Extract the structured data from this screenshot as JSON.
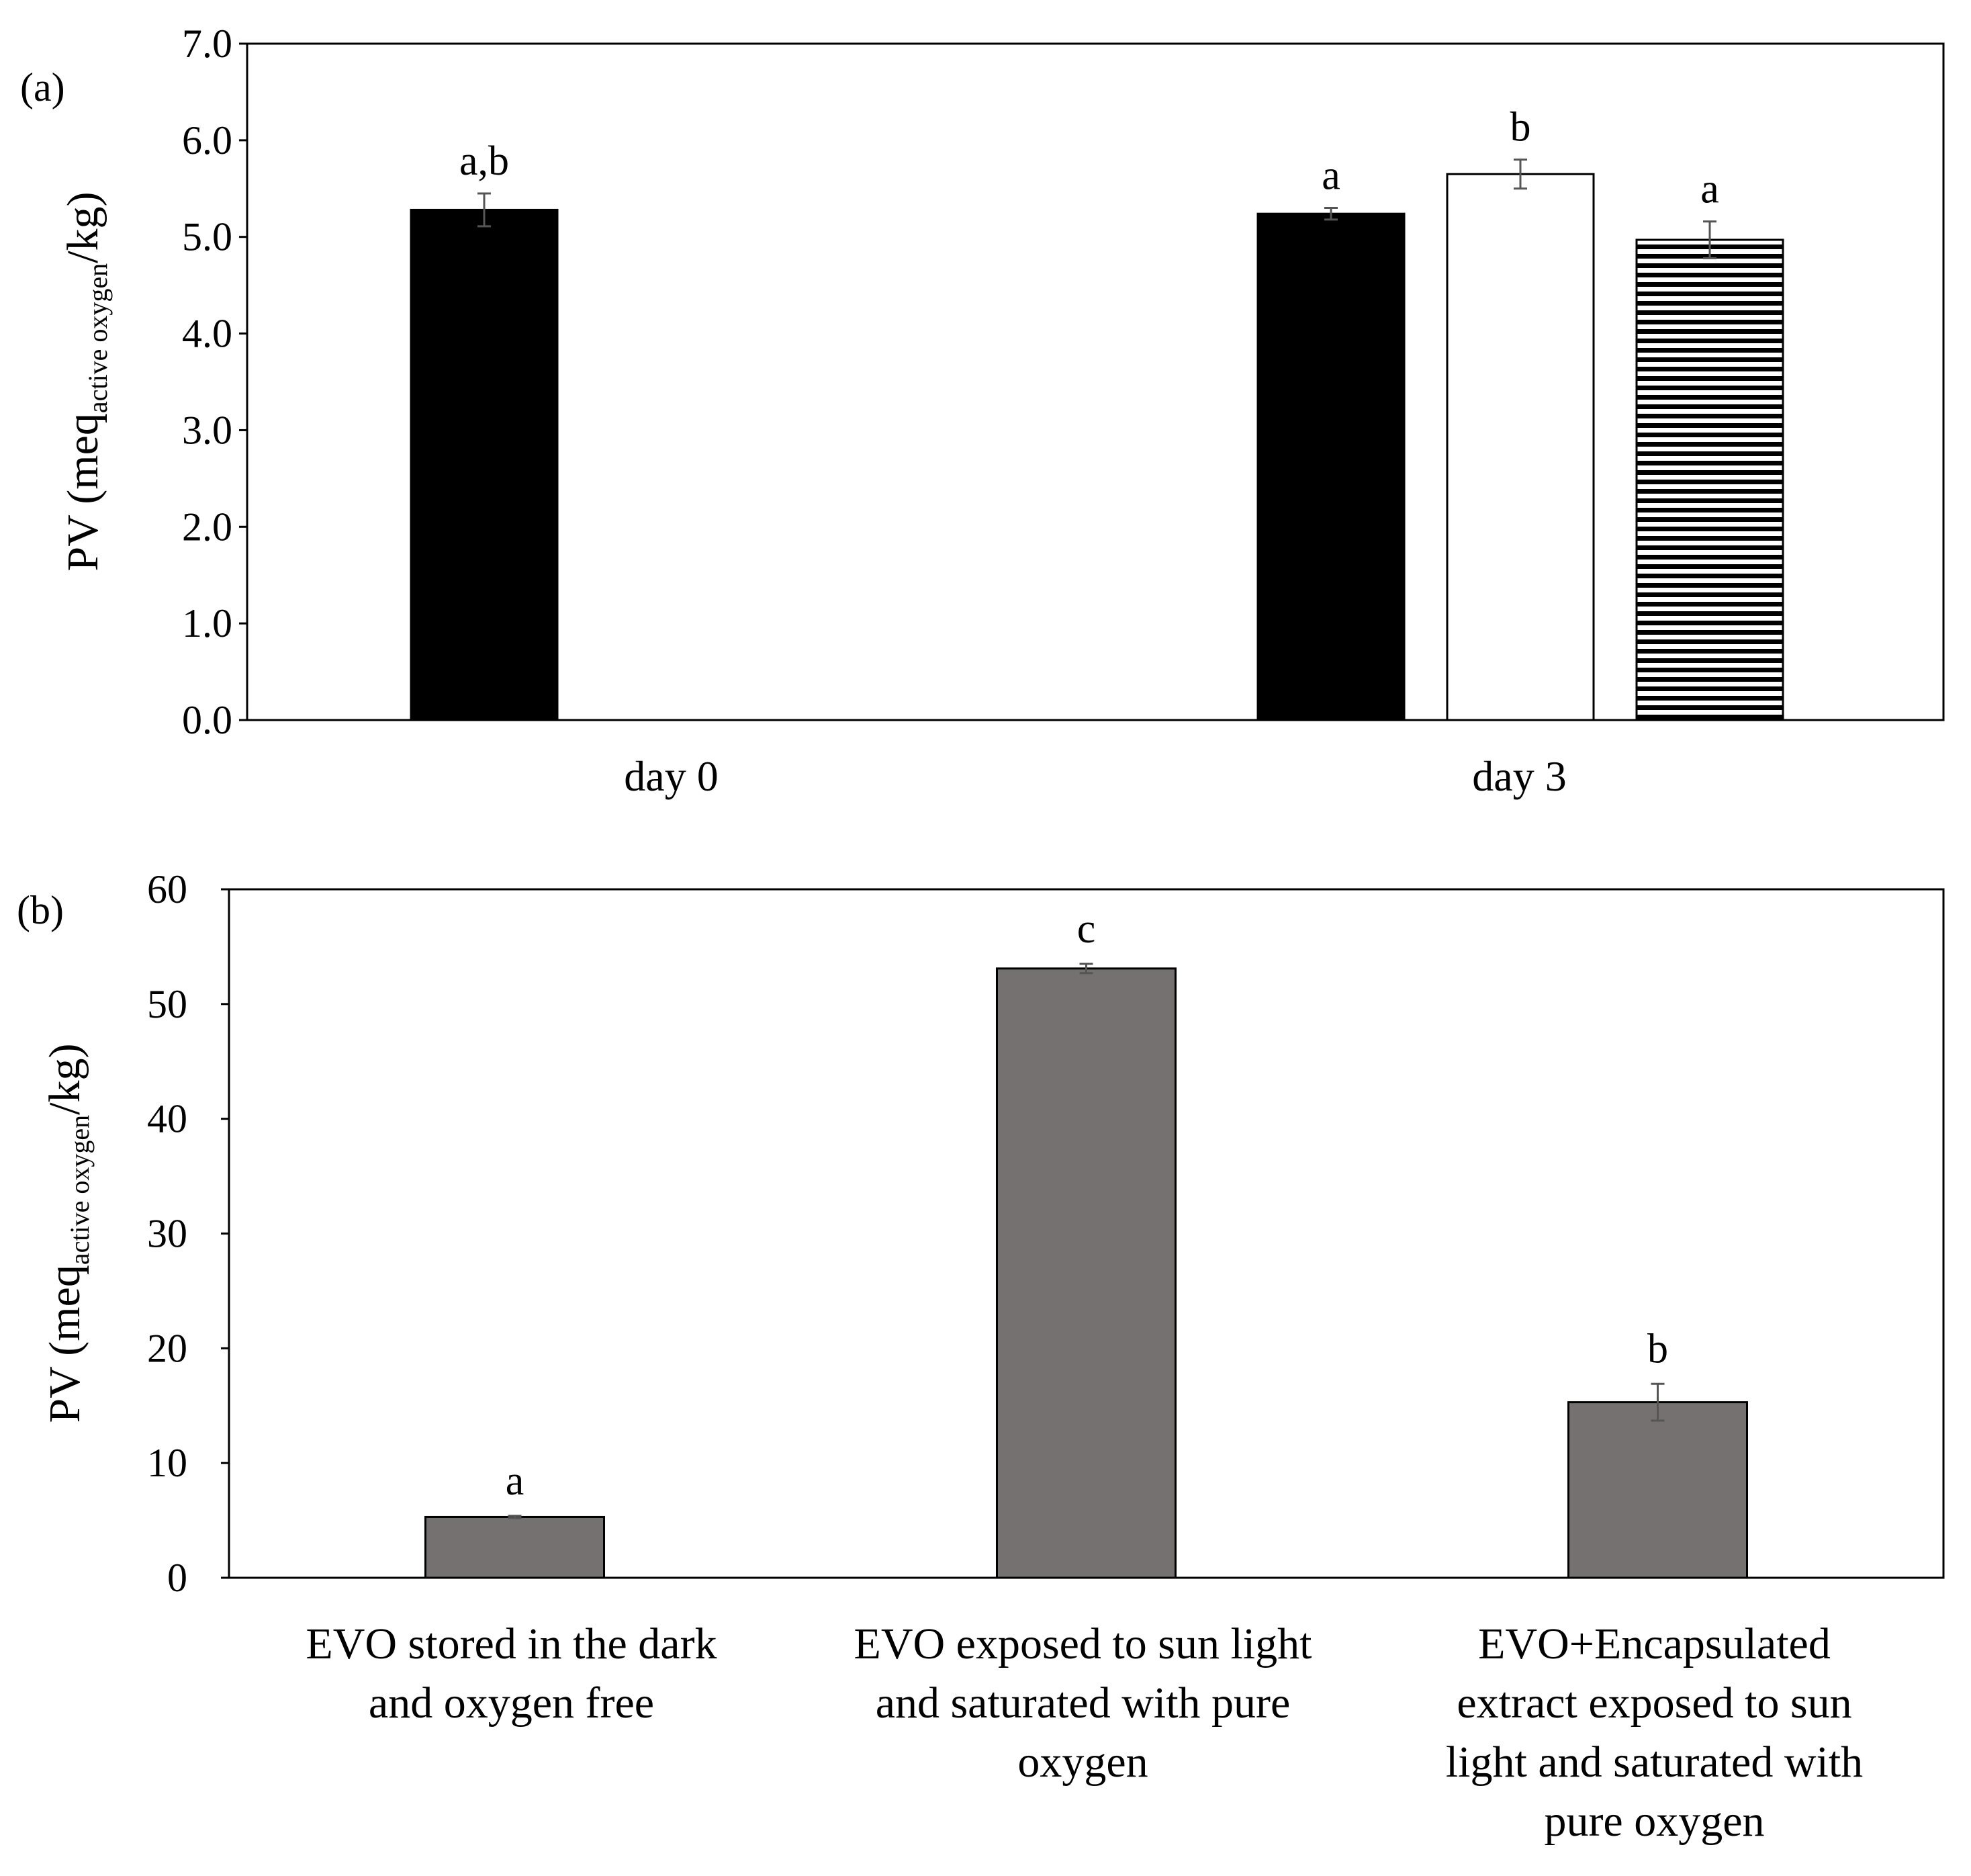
{
  "chart_data": [
    {
      "panel_label": "(a)",
      "type": "bar",
      "categories": [
        "day 0",
        "day 3"
      ],
      "ylim": [
        0,
        7
      ],
      "yticks": [
        "0.0",
        "1.0",
        "2.0",
        "3.0",
        "4.0",
        "5.0",
        "6.0",
        "7.0"
      ],
      "ylabel": {
        "prefix": "PV (meq",
        "subscript": "active oxygen",
        "suffix": "/kg)"
      },
      "xlabel": "",
      "grid": false,
      "colors": {
        "black": "#000000",
        "white": "#ffffff",
        "stripe": "#000000"
      },
      "bars": [
        {
          "category": "day 0",
          "slot": 0,
          "fill": "black",
          "value": 5.28,
          "error": 0.17,
          "letter": "a,b"
        },
        {
          "category": "day 3",
          "slot": 0,
          "fill": "black",
          "value": 5.24,
          "error": 0.06,
          "letter": "a"
        },
        {
          "category": "day 3",
          "slot": 1,
          "fill": "white",
          "value": 5.65,
          "error": 0.15,
          "letter": "b"
        },
        {
          "category": "day 3",
          "slot": 2,
          "fill": "stripe",
          "value": 4.97,
          "error": 0.19,
          "letter": "a"
        }
      ]
    },
    {
      "panel_label": "(b)",
      "type": "bar",
      "categories": [
        [
          "EVO stored in the dark",
          "and oxygen free"
        ],
        [
          "EVO  exposed to sun light",
          "and saturated with pure",
          "oxygen"
        ],
        [
          "EVO+Encapsulated",
          "extract exposed to sun",
          "light and saturated with",
          "pure oxygen"
        ]
      ],
      "values": [
        5.3,
        53.1,
        15.3
      ],
      "errors": [
        0.1,
        0.4,
        1.6
      ],
      "letters": [
        "a",
        "c",
        "b"
      ],
      "ylim": [
        0,
        60
      ],
      "yticks": [
        "0",
        "10",
        "20",
        "30",
        "40",
        "50",
        "60"
      ],
      "ylabel": {
        "prefix": "PV (meq",
        "subscript": "active oxygen",
        "suffix": "/kg)"
      },
      "xlabel": "",
      "grid": false,
      "bar_color": "#757170"
    }
  ]
}
